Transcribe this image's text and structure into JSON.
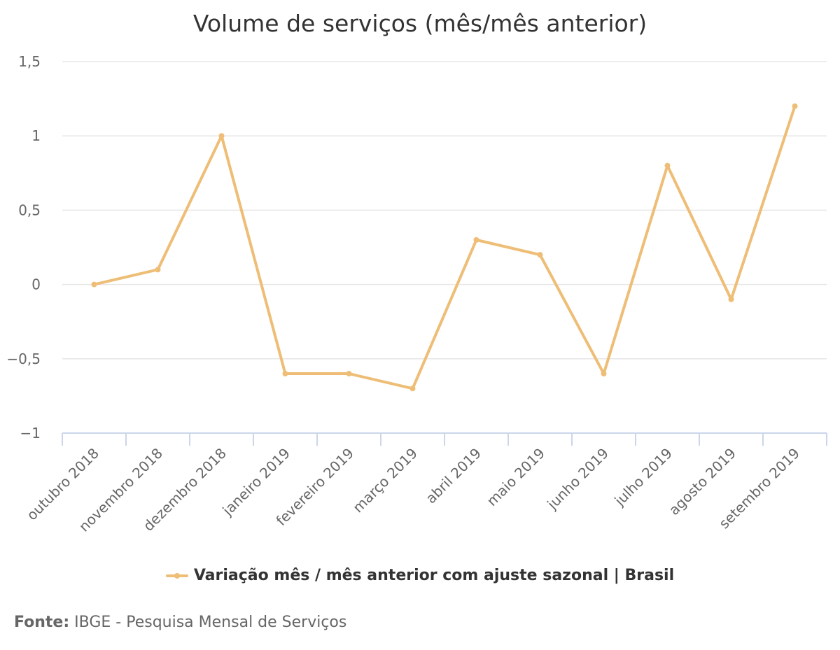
{
  "chart_data": {
    "type": "line",
    "title": "Volume de serviços (mês/mês anterior)",
    "xlabel": "",
    "ylabel": "",
    "categories": [
      "outubro 2018",
      "novembro 2018",
      "dezembro 2018",
      "janeiro 2019",
      "fevereiro 2019",
      "março 2019",
      "abril 2019",
      "maio 2019",
      "junho 2019",
      "julho 2019",
      "agosto 2019",
      "setembro 2019"
    ],
    "series": [
      {
        "name": "Variação mês / mês anterior com ajuste sazonal | Brasil",
        "values": [
          0,
          0.1,
          1,
          -0.6,
          -0.6,
          -0.7,
          0.3,
          0.2,
          -0.6,
          0.8,
          -0.1,
          1.2
        ],
        "color": "#eebd76"
      }
    ],
    "ylim": [
      -1,
      1.5
    ],
    "yticks": [
      1.5,
      1,
      0.5,
      0,
      -0.5,
      -1
    ],
    "ytick_labels": [
      "1,5",
      "1",
      "0,5",
      "0",
      "−0,5",
      "−1"
    ],
    "grid": true,
    "legend_position": "bottom"
  },
  "source": {
    "label": "Fonte:",
    "text": "IBGE - Pesquisa Mensal de Serviços"
  }
}
